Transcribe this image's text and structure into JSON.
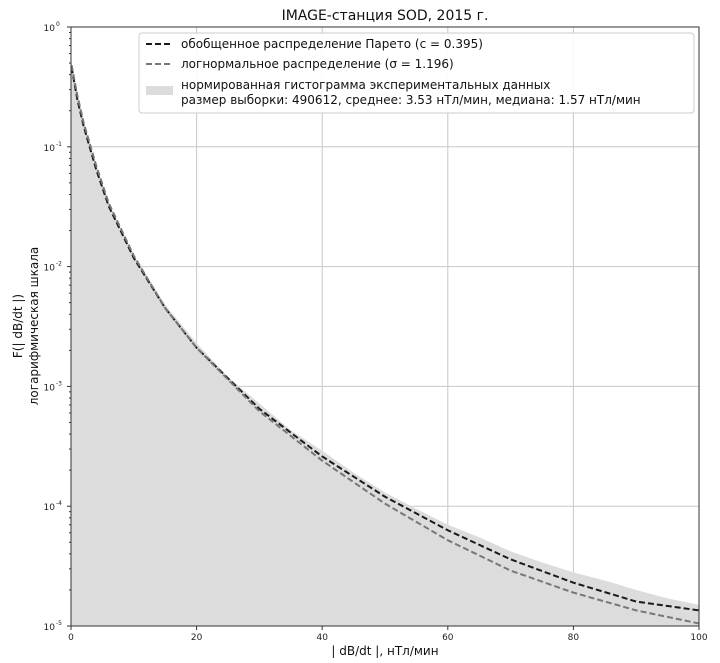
{
  "chart_data": {
    "type": "area",
    "title": "IMAGE-станция SOD, 2015 г.",
    "xlabel": "| dB/dt |, нТл/мин",
    "ylabel": "логарифмическая шкала",
    "ylabel2": "F(| dB/dt |)",
    "xlim": [
      0,
      100
    ],
    "ylim": [
      1e-05,
      1
    ],
    "yscale": "log",
    "grid": true,
    "legend_position": "top",
    "x_ticks": [
      "0",
      "20",
      "40",
      "60",
      "80",
      "100"
    ],
    "y_tick_base": "10",
    "y_tick_exponents": [
      "-5",
      "-4",
      "-3",
      "-2",
      "-1",
      "0"
    ],
    "legend": [
      {
        "label": "обобщенное распределение Парето (c = 0.395)",
        "style": "dashed",
        "color": "#1a1a1a"
      },
      {
        "label": "логнормальное распределение (σ = 1.196)",
        "style": "dashed",
        "color": "#777777"
      },
      {
        "label": "нормированная гистограмма экспериментальных данных",
        "style": "patch",
        "color": "#dcdcdc",
        "sub_label": "размер выборки: 490612, среднее: 3.53  нТл/мин, медиана: 1.57 нТл/мин"
      }
    ],
    "series": [
      {
        "name": "обобщенное распределение Парето (c = 0.395)",
        "x": [
          0.1,
          1,
          2,
          4,
          6,
          10,
          15,
          20,
          30,
          40,
          50,
          60,
          70,
          80,
          90,
          100
        ],
        "y": [
          0.46,
          0.25,
          0.15,
          0.065,
          0.032,
          0.0118,
          0.0045,
          0.0021,
          0.00065,
          0.00026,
          0.00012,
          6.3e-05,
          3.6e-05,
          2.3e-05,
          1.6e-05,
          1.35e-05
        ]
      },
      {
        "name": "логнормальное распределение (σ = 1.196)",
        "x": [
          0.1,
          1,
          2,
          4,
          6,
          10,
          15,
          20,
          30,
          40,
          50,
          60,
          70,
          80,
          90,
          100
        ],
        "y": [
          0.48,
          0.27,
          0.16,
          0.07,
          0.034,
          0.0123,
          0.0045,
          0.0021,
          0.00062,
          0.00024,
          0.000105,
          5.2e-05,
          2.9e-05,
          1.9e-05,
          1.35e-05,
          1.05e-05
        ]
      }
    ],
    "histogram": {
      "name": "нормированная гистограмма экспериментальных данных",
      "x": [
        0,
        1,
        2,
        4,
        6,
        10,
        15,
        20,
        25,
        30,
        35,
        40,
        45,
        50,
        55,
        60,
        65,
        70,
        75,
        80,
        85,
        90,
        95,
        100
      ],
      "y": [
        0.45,
        0.27,
        0.16,
        0.07,
        0.034,
        0.0125,
        0.0048,
        0.0023,
        0.0012,
        0.00072,
        0.00043,
        0.00029,
        0.00019,
        0.00013,
        9.5e-05,
        7e-05,
        5.5e-05,
        4.2e-05,
        3.4e-05,
        2.8e-05,
        2.4e-05,
        2e-05,
        1.7e-05,
        1.5e-05
      ]
    },
    "colors": {
      "axes": "#333333",
      "grid": "#c8c8c8",
      "histogram": "#dcdcdc",
      "pareto": "#1a1a1a",
      "lognormal": "#777777"
    }
  }
}
